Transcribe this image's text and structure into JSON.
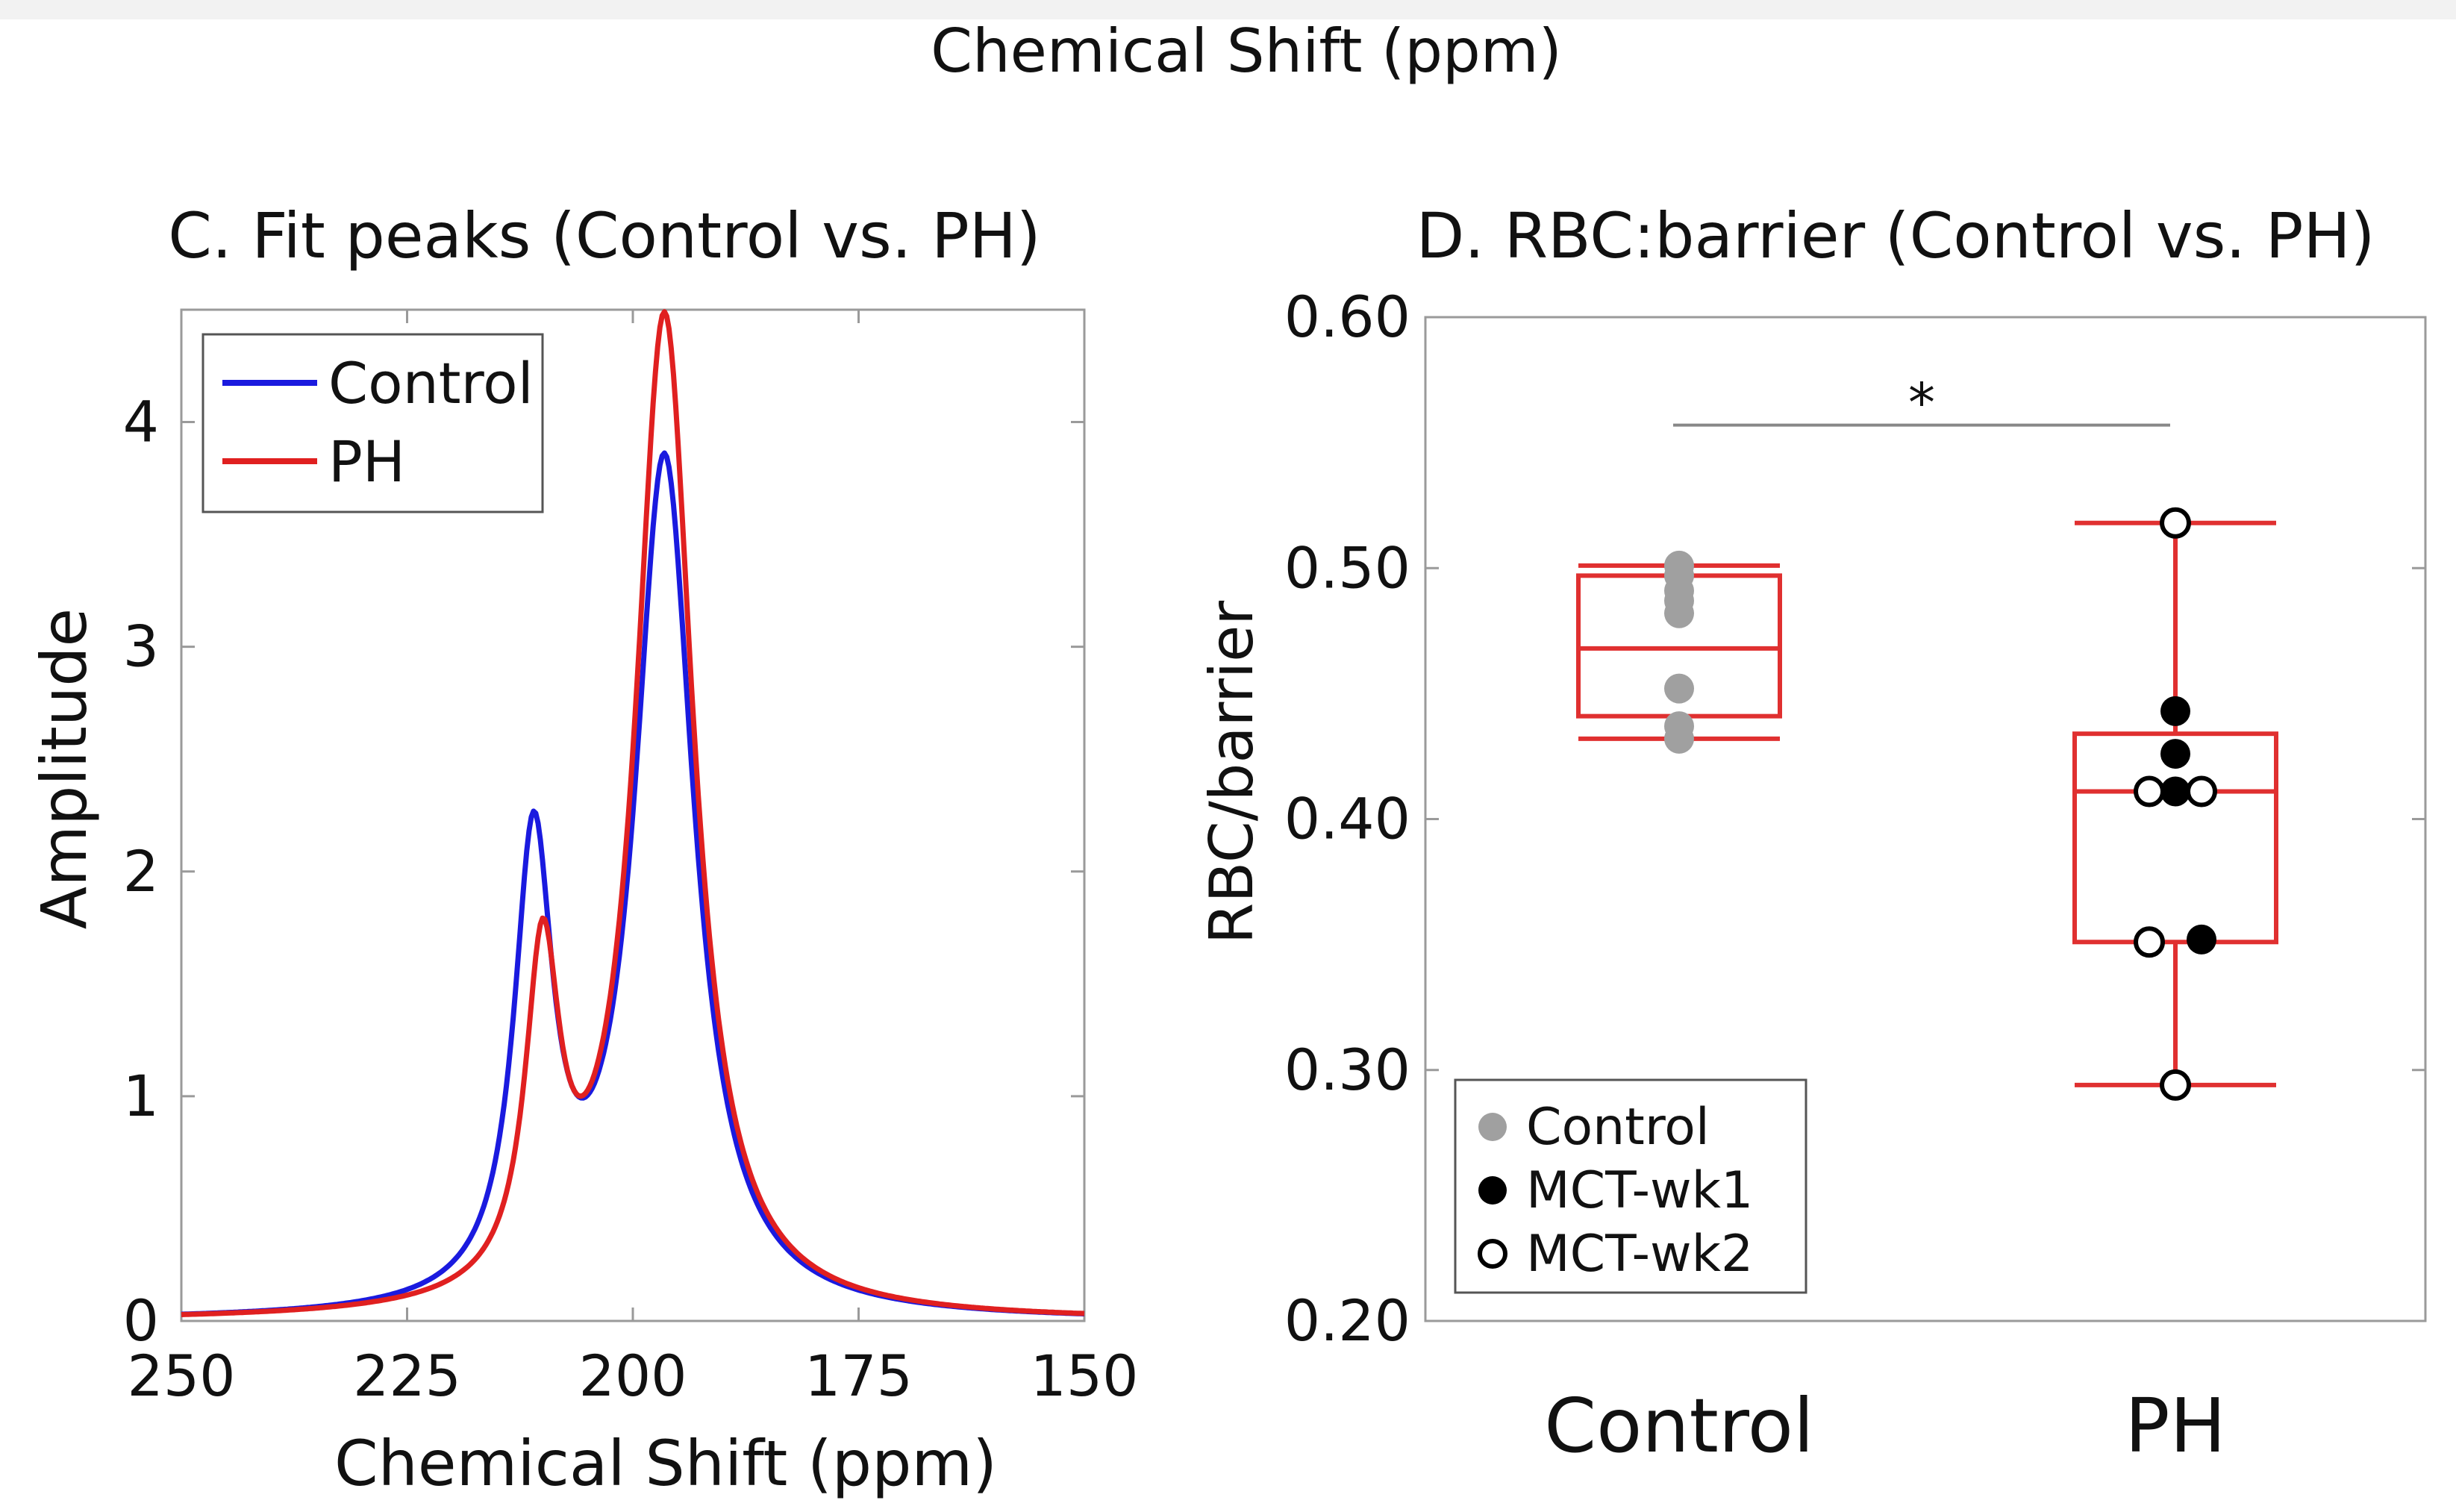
{
  "figure": {
    "top_caption": "Chemical Shift (ppm)"
  },
  "colors": {
    "control": "#1a1adf",
    "ph": "#e02020",
    "box": "#e03030",
    "control_dot": "#a0a0a0",
    "mct_wk1": "#000000",
    "mct_wk2": "#000000",
    "sig_line": "#888888"
  },
  "chart_data": [
    {
      "type": "line",
      "title": "C. Fit peaks (Control vs. PH)",
      "xlabel": "Chemical Shift (ppm)",
      "ylabel": "Amplitude",
      "xlim": [
        250,
        150
      ],
      "ylim": [
        0,
        4.5
      ],
      "xticks": [
        250,
        225,
        200,
        175,
        150
      ],
      "xtick_labels": [
        "250",
        "225",
        "200",
        "175",
        "150"
      ],
      "yticks": [
        0,
        1,
        2,
        3,
        4
      ],
      "ytick_labels": [
        "0",
        "1",
        "2",
        "3",
        "4"
      ],
      "legend": "top-left",
      "series": [
        {
          "name": "Control",
          "peaks": [
            {
              "center": 196.5,
              "height": 3.8,
              "hwhm": 4.0
            },
            {
              "center": 211.0,
              "height": 2.0,
              "hwhm": 2.6
            }
          ]
        },
        {
          "name": "PH",
          "peaks": [
            {
              "center": 196.5,
              "height": 4.45,
              "hwhm": 3.9
            },
            {
              "center": 210.0,
              "height": 1.45,
              "hwhm": 2.3
            }
          ]
        }
      ]
    },
    {
      "type": "box",
      "title": "D. RBC:barrier (Control vs. PH)",
      "ylabel": "RBC/barrier",
      "ylim": [
        0.2,
        0.6
      ],
      "yticks": [
        0.2,
        0.3,
        0.4,
        0.5,
        0.6
      ],
      "ytick_labels": [
        "0.20",
        "0.30",
        "0.40",
        "0.50",
        "0.60"
      ],
      "categories": [
        "Control",
        "PH"
      ],
      "legend": "bottom-left",
      "legend_entries": [
        "Control",
        "MCT-wk1",
        "MCT-wk2"
      ],
      "significance": {
        "label": "*",
        "between": [
          "Control",
          "PH"
        ],
        "y": 0.557
      },
      "boxes": [
        {
          "category": "Control",
          "min": 0.432,
          "q1": 0.441,
          "median": 0.468,
          "q3": 0.497,
          "max": 0.501
        },
        {
          "category": "PH",
          "min": 0.294,
          "q1": 0.351,
          "median": 0.411,
          "q3": 0.434,
          "max": 0.518
        }
      ],
      "points": [
        {
          "category": "Control",
          "group": "Control",
          "values": [
            0.501,
            0.497,
            0.491,
            0.487,
            0.482,
            0.452,
            0.437,
            0.432
          ],
          "jitter": [
            0,
            0,
            0,
            0,
            0,
            0,
            0,
            0
          ]
        },
        {
          "category": "PH",
          "group": "MCT-wk1",
          "values": [
            0.443,
            0.426,
            0.411,
            0.352
          ],
          "jitter": [
            0,
            0,
            0,
            0.35
          ]
        },
        {
          "category": "PH",
          "group": "MCT-wk2",
          "values": [
            0.518,
            0.411,
            0.411,
            0.351,
            0.294
          ],
          "jitter": [
            0,
            -0.35,
            0.35,
            -0.35,
            0
          ]
        }
      ]
    }
  ]
}
